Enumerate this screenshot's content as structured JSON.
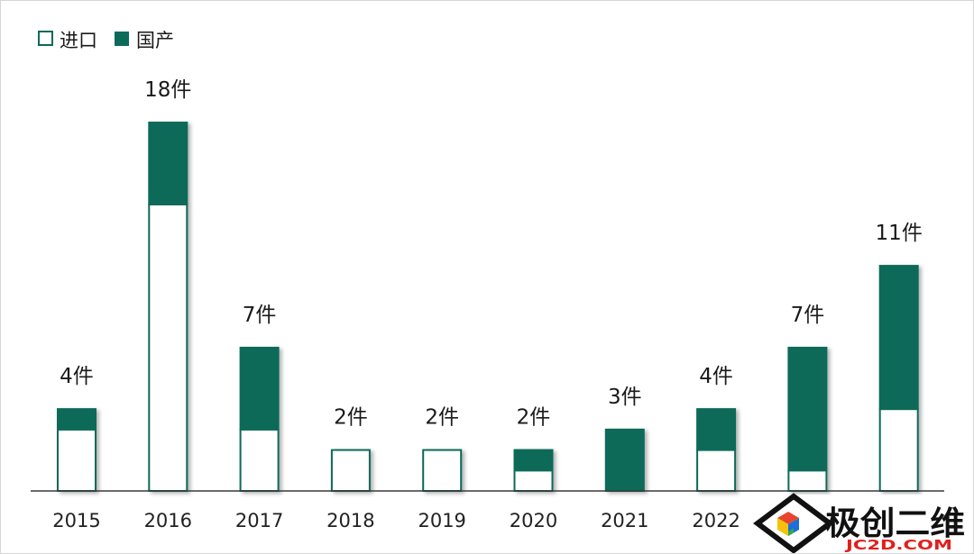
{
  "colors": {
    "domestic": "#0b6a59",
    "imported": "#ffffff",
    "outline": "#0b6a59",
    "axis": "#3a3a3a",
    "watermark_accent": "#e0201c"
  },
  "chart_data": {
    "type": "bar",
    "stacked": true,
    "categories": [
      "2015",
      "2016",
      "2017",
      "2018",
      "2019",
      "2020",
      "2021",
      "2022",
      "",
      ""
    ],
    "series": [
      {
        "name": "进口",
        "color": "#ffffff",
        "values": [
          3,
          14,
          3,
          2,
          2,
          1,
          0,
          2,
          1,
          4
        ]
      },
      {
        "name": "国产",
        "color": "#0b6a59",
        "values": [
          1,
          4,
          4,
          0,
          0,
          1,
          3,
          2,
          6,
          7
        ]
      }
    ],
    "data_labels": [
      "4件",
      "18件",
      "7件",
      "2件",
      "2件",
      "2件",
      "3件",
      "4件",
      "7件",
      "11件"
    ],
    "ylim": [
      0,
      20
    ],
    "grid": false,
    "legend_position": "top-left"
  },
  "watermark": {
    "brand": "极创二维",
    "domain": "JC2D.COM"
  }
}
